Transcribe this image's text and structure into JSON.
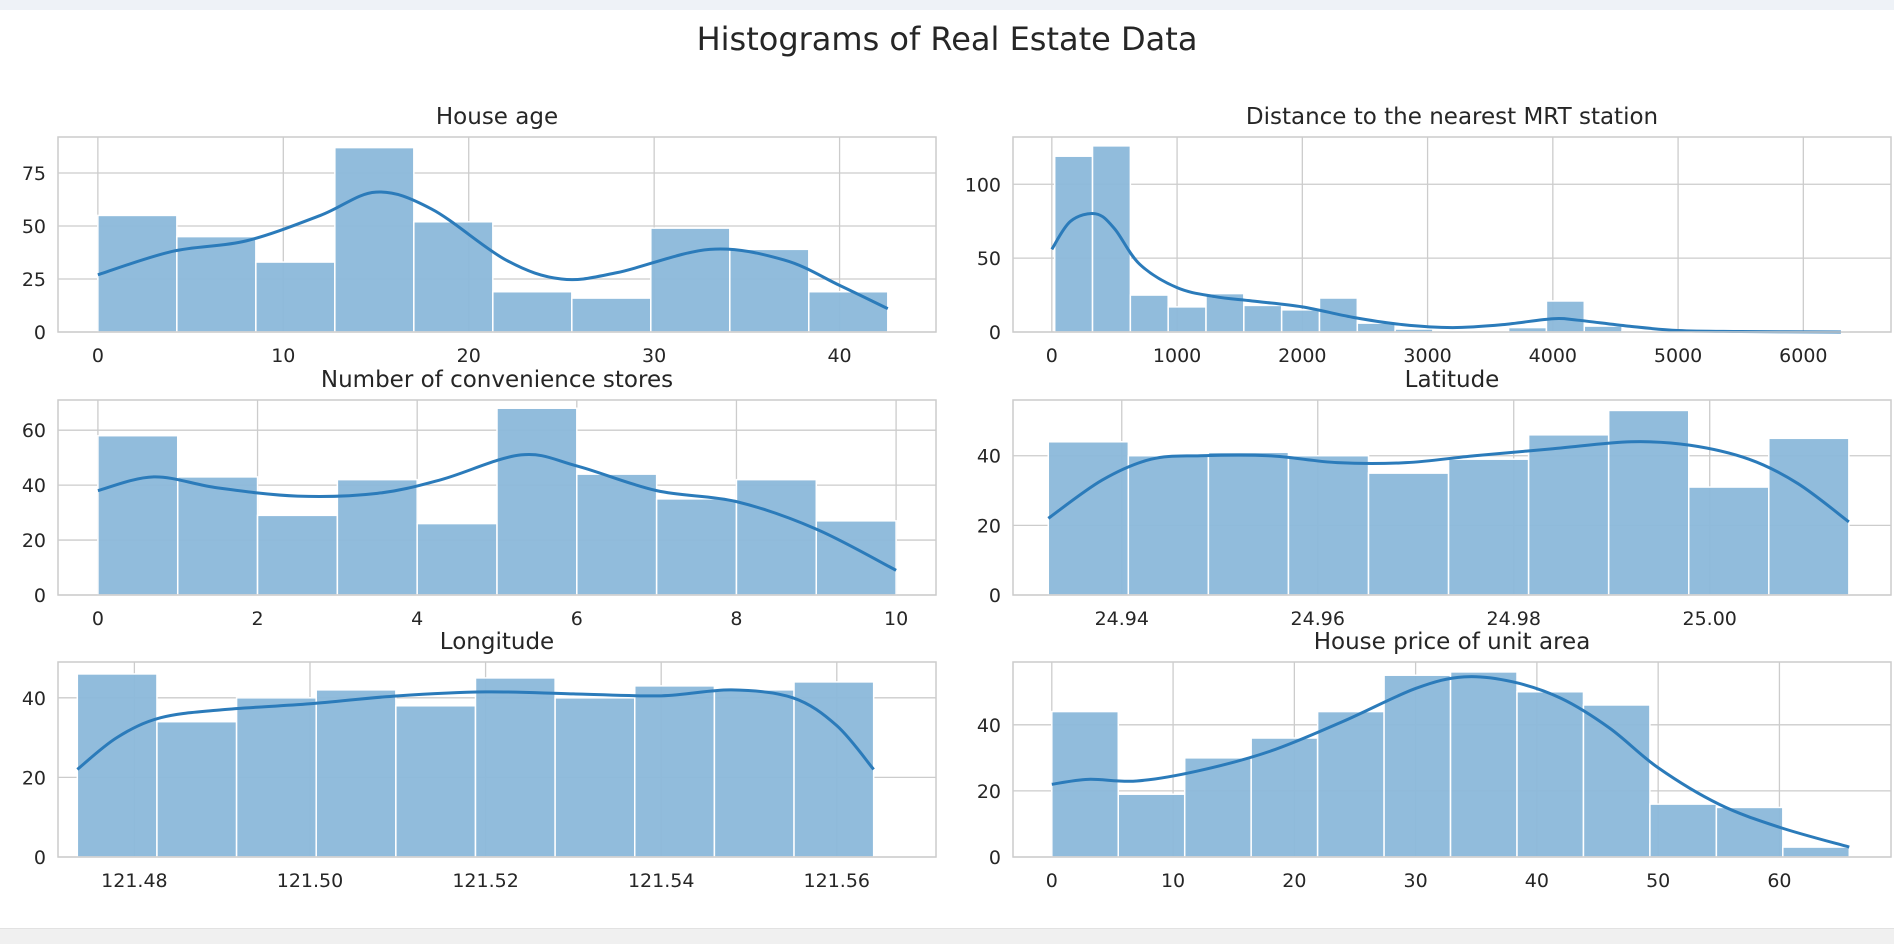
{
  "figure": {
    "suptitle": "Histograms of Real Estate Data"
  },
  "style": {
    "bar_fill": "#8bb8da",
    "bar_edge": "#ffffff",
    "kde_color": "#2b7bba",
    "grid_color": "#cccccc",
    "axis_color": "#cccccc"
  },
  "chart_data": [
    {
      "type": "bar",
      "title": "House age",
      "grid": true,
      "xlim": [
        -2.15,
        45.2
      ],
      "ylim": [
        0,
        92
      ],
      "xticks": [
        0,
        10,
        20,
        30,
        40
      ],
      "xtick_labels": [
        "0",
        "10",
        "20",
        "30",
        "40"
      ],
      "yticks": [
        0,
        25,
        50,
        75
      ],
      "ytick_labels": [
        "0",
        "25",
        "50",
        "75"
      ],
      "bin_edges": [
        0,
        4.26,
        8.52,
        12.78,
        17.04,
        21.3,
        25.56,
        29.82,
        34.08,
        38.34,
        42.6
      ],
      "counts": [
        55,
        45,
        33,
        87,
        52,
        19,
        16,
        49,
        39,
        19
      ],
      "kde": {
        "x": [
          0,
          4,
          8,
          12,
          15,
          18,
          22,
          25,
          28,
          33,
          37,
          40,
          42.6
        ],
        "y": [
          27,
          38,
          43,
          55,
          66,
          58,
          34,
          25,
          28,
          39,
          34,
          22,
          11
        ]
      }
    },
    {
      "type": "bar",
      "title": "Distance to the nearest MRT station",
      "grid": true,
      "xlim": [
        -310,
        6700
      ],
      "ylim": [
        0,
        132
      ],
      "xticks": [
        0,
        1000,
        2000,
        3000,
        4000,
        5000,
        6000
      ],
      "xtick_labels": [
        "0",
        "1000",
        "2000",
        "3000",
        "4000",
        "5000",
        "6000"
      ],
      "yticks": [
        0,
        50,
        100
      ],
      "ytick_labels": [
        "0",
        "50",
        "100"
      ],
      "bin_edges": [
        23,
        325,
        627,
        929,
        1231,
        1533,
        1835,
        2137,
        2439,
        2741,
        3043,
        3345,
        3647,
        3949,
        4251,
        4553,
        4855,
        5157,
        5459,
        5761,
        6063,
        6365
      ],
      "counts": [
        119,
        126,
        25,
        17,
        26,
        18,
        15,
        23,
        6,
        2,
        1,
        1,
        3,
        21,
        4,
        1,
        0,
        1,
        0,
        0,
        1
      ],
      "kde": {
        "x": [
          0,
          150,
          350,
          500,
          700,
          1000,
          1300,
          1600,
          2000,
          2400,
          2800,
          3200,
          3600,
          4000,
          4200,
          4600,
          5000,
          5500,
          6300
        ],
        "y": [
          56,
          75,
          80,
          70,
          46,
          30,
          24,
          21,
          17,
          10,
          5,
          3,
          5,
          9,
          8,
          4,
          1,
          0.3,
          0
        ]
      }
    },
    {
      "type": "bar",
      "title": "Number of convenience stores",
      "grid": true,
      "xlim": [
        -0.5,
        10.5
      ],
      "ylim": [
        0,
        71
      ],
      "xticks": [
        0,
        2,
        4,
        6,
        8,
        10
      ],
      "xtick_labels": [
        "0",
        "2",
        "4",
        "6",
        "8",
        "10"
      ],
      "yticks": [
        0,
        20,
        40,
        60
      ],
      "ytick_labels": [
        "0",
        "20",
        "40",
        "60"
      ],
      "bin_edges": [
        0,
        1,
        2,
        3,
        4,
        5,
        6,
        7,
        8,
        9,
        10
      ],
      "counts": [
        58,
        43,
        29,
        42,
        26,
        68,
        44,
        35,
        42,
        27
      ],
      "kde": {
        "x": [
          0,
          0.7,
          1.5,
          2.5,
          3.5,
          4.3,
          5.3,
          6,
          7,
          8,
          9,
          10
        ],
        "y": [
          38,
          43,
          39,
          36,
          37,
          42,
          51,
          47,
          38,
          34,
          24,
          9
        ]
      }
    },
    {
      "type": "bar",
      "title": "Latitude",
      "grid": true,
      "xlim": [
        24.9289,
        25.0185
      ],
      "ylim": [
        0,
        56
      ],
      "xticks": [
        24.94,
        24.96,
        24.98,
        25.0
      ],
      "xtick_labels": [
        "24.94",
        "24.96",
        "24.98",
        "25.00"
      ],
      "yticks": [
        0,
        20,
        40
      ],
      "ytick_labels": [
        "0",
        "20",
        "40"
      ],
      "bin_edges": [
        24.9325,
        24.94067,
        24.94884,
        24.95701,
        24.96518,
        24.97335,
        24.98152,
        24.98969,
        24.99786,
        25.00603,
        25.0142
      ],
      "counts": [
        44,
        40,
        41,
        40,
        35,
        39,
        46,
        53,
        31,
        45
      ],
      "kde": {
        "x": [
          24.9325,
          24.938,
          24.943,
          24.948,
          24.955,
          24.962,
          24.969,
          24.976,
          24.984,
          24.992,
          24.998,
          25.004,
          25.009,
          25.0142
        ],
        "y": [
          22,
          33,
          39,
          40,
          40,
          38,
          38,
          40,
          42,
          44,
          43,
          39,
          32,
          21
        ]
      }
    },
    {
      "type": "bar",
      "title": "Longitude",
      "grid": true,
      "xlim": [
        121.4713,
        121.5713
      ],
      "ylim": [
        0,
        49
      ],
      "xticks": [
        121.48,
        121.5,
        121.52,
        121.54,
        121.56
      ],
      "xtick_labels": [
        "121.48",
        "121.50",
        "121.52",
        "121.54",
        "121.56"
      ],
      "yticks": [
        0,
        20,
        40
      ],
      "ytick_labels": [
        "0",
        "20",
        "40"
      ],
      "bin_edges": [
        121.4735,
        121.48257,
        121.49164,
        121.50071,
        121.50978,
        121.51885,
        121.52792,
        121.53699,
        121.54606,
        121.55513,
        121.5642
      ],
      "counts": [
        46,
        34,
        40,
        42,
        38,
        45,
        40,
        43,
        42,
        44
      ],
      "kde": {
        "x": [
          121.4735,
          121.478,
          121.483,
          121.49,
          121.5,
          121.51,
          121.52,
          121.53,
          121.54,
          121.548,
          121.555,
          121.56,
          121.5642
        ],
        "y": [
          22,
          30,
          35,
          37,
          38.5,
          40.5,
          41.5,
          41,
          40.5,
          42,
          40,
          33,
          22
        ]
      }
    },
    {
      "type": "bar",
      "title": "House price of unit area",
      "grid": true,
      "xlim": [
        -3.2,
        69.2
      ],
      "ylim": [
        0,
        59
      ],
      "xticks": [
        0,
        10,
        20,
        30,
        40,
        50,
        60
      ],
      "xtick_labels": [
        "0",
        "10",
        "20",
        "30",
        "40",
        "50",
        "60"
      ],
      "yticks": [
        0,
        20,
        40
      ],
      "ytick_labels": [
        "0",
        "20",
        "40"
      ],
      "bin_edges": [
        0,
        5.48,
        10.96,
        16.44,
        21.92,
        27.4,
        32.88,
        38.36,
        43.84,
        49.32,
        54.8,
        60.28,
        65.76
      ],
      "counts": [
        44,
        19,
        30,
        36,
        44,
        55,
        56,
        50,
        46,
        16,
        15,
        3
      ],
      "kde": {
        "x": [
          0,
          3,
          7,
          12,
          18,
          24,
          30,
          34,
          38,
          42,
          46,
          50,
          55,
          60,
          65.76
        ],
        "y": [
          22,
          23.5,
          23,
          26,
          32,
          41,
          51,
          54.5,
          53,
          48,
          39,
          27,
          16,
          9,
          3
        ]
      }
    }
  ]
}
